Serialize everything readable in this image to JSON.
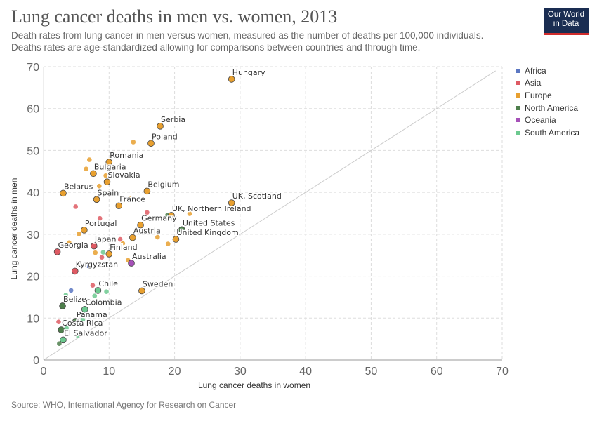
{
  "header": {
    "title": "Lung cancer deaths in men vs. women, 2013",
    "subtitle_lines": [
      "Death rates from lung cancer in men versus women, measured as the number of deaths per 100,000 individuals.",
      "Deaths rates are age-standardized allowing for comparisons between countries and through time."
    ]
  },
  "logo": {
    "line1": "Our World",
    "line2": "in Data"
  },
  "footer": {
    "source": "Source: WHO, International Agency for Research on Cancer"
  },
  "legend": [
    {
      "name": "Africa",
      "color": "#5b77c2"
    },
    {
      "name": "Asia",
      "color": "#de5a63"
    },
    {
      "name": "Europe",
      "color": "#e8a030"
    },
    {
      "name": "North America",
      "color": "#4e7f4c"
    },
    {
      "name": "Oceania",
      "color": "#a651b8"
    },
    {
      "name": "South America",
      "color": "#6cc98f"
    }
  ],
  "chart_data": {
    "type": "scatter",
    "title": "Lung cancer deaths in men vs. women, 2013",
    "xlabel": "Lung cancer deaths in women",
    "ylabel": "Lung cancer deaths in men",
    "xlim": [
      0,
      70
    ],
    "ylim": [
      0,
      70
    ],
    "xticks": [
      0,
      10,
      20,
      30,
      40,
      50,
      60,
      70
    ],
    "yticks": [
      0,
      10,
      20,
      30,
      40,
      50,
      60,
      70
    ],
    "grid": true,
    "reference_line": "y = x",
    "legend_position": "right",
    "points": [
      {
        "label": "Hungary",
        "region": "Europe",
        "x": 28.7,
        "y": 67.0
      },
      {
        "label": "Serbia",
        "region": "Europe",
        "x": 17.8,
        "y": 55.8
      },
      {
        "label": "Poland",
        "region": "Europe",
        "x": 16.4,
        "y": 51.7
      },
      {
        "label": "Romania",
        "region": "Europe",
        "x": 10.0,
        "y": 47.2
      },
      {
        "label": "Bulgaria",
        "region": "Europe",
        "x": 7.6,
        "y": 44.5
      },
      {
        "label": "Slovakia",
        "region": "Europe",
        "x": 9.7,
        "y": 42.5
      },
      {
        "label": "Belgium",
        "region": "Europe",
        "x": 15.8,
        "y": 40.3
      },
      {
        "label": "Belarus",
        "region": "Europe",
        "x": 3.0,
        "y": 39.8
      },
      {
        "label": "Spain",
        "region": "Europe",
        "x": 8.1,
        "y": 38.3
      },
      {
        "label": "France",
        "region": "Europe",
        "x": 11.5,
        "y": 36.8
      },
      {
        "label": "UK, Scotland",
        "region": "Europe",
        "x": 28.7,
        "y": 37.5
      },
      {
        "label": "UK, Northern Ireland",
        "region": "Europe",
        "x": 19.5,
        "y": 34.5
      },
      {
        "label": "Germany",
        "region": "Europe",
        "x": 14.8,
        "y": 32.2
      },
      {
        "label": "Portugal",
        "region": "Europe",
        "x": 6.2,
        "y": 31.0
      },
      {
        "label": "United States",
        "region": "North America",
        "x": 21.1,
        "y": 31.1
      },
      {
        "label": "Austria",
        "region": "Europe",
        "x": 13.6,
        "y": 29.2
      },
      {
        "label": "United Kingdom",
        "region": "Europe",
        "x": 20.2,
        "y": 28.8
      },
      {
        "label": "Japan",
        "region": "Asia",
        "x": 7.7,
        "y": 27.2
      },
      {
        "label": "Georgia",
        "region": "Asia",
        "x": 2.1,
        "y": 25.8
      },
      {
        "label": "Finland",
        "region": "Europe",
        "x": 10.0,
        "y": 25.3
      },
      {
        "label": "Australia",
        "region": "Oceania",
        "x": 13.4,
        "y": 23.1
      },
      {
        "label": "Kyrgyzstan",
        "region": "Asia",
        "x": 4.8,
        "y": 21.2
      },
      {
        "label": "Chile",
        "region": "South America",
        "x": 8.3,
        "y": 16.6
      },
      {
        "label": "Sweden",
        "region": "Europe",
        "x": 15.0,
        "y": 16.5
      },
      {
        "label": "Belize",
        "region": "North America",
        "x": 2.9,
        "y": 12.9
      },
      {
        "label": "Colombia",
        "region": "South America",
        "x": 6.3,
        "y": 12.1
      },
      {
        "label": "Panama",
        "region": "North America",
        "x": 4.9,
        "y": 9.2
      },
      {
        "label": "Costa Rica",
        "region": "North America",
        "x": 2.7,
        "y": 7.2
      },
      {
        "label": "El Salvador",
        "region": "South America",
        "x": 3.0,
        "y": 4.8
      },
      {
        "label": "",
        "region": "Europe",
        "x": 13.7,
        "y": 52.0
      },
      {
        "label": "",
        "region": "Europe",
        "x": 7.0,
        "y": 47.8
      },
      {
        "label": "",
        "region": "Europe",
        "x": 6.5,
        "y": 45.6
      },
      {
        "label": "",
        "region": "Europe",
        "x": 9.5,
        "y": 44.0
      },
      {
        "label": "",
        "region": "Europe",
        "x": 8.5,
        "y": 41.5
      },
      {
        "label": "",
        "region": "South America",
        "x": 9.5,
        "y": 39.8
      },
      {
        "label": "",
        "region": "Europe",
        "x": 13.2,
        "y": 38.5
      },
      {
        "label": "",
        "region": "Asia",
        "x": 4.9,
        "y": 36.6
      },
      {
        "label": "",
        "region": "Asia",
        "x": 15.8,
        "y": 35.2
      },
      {
        "label": "",
        "region": "North America",
        "x": 18.9,
        "y": 34.5
      },
      {
        "label": "",
        "region": "Europe",
        "x": 22.3,
        "y": 34.9
      },
      {
        "label": "",
        "region": "Asia",
        "x": 8.6,
        "y": 33.8
      },
      {
        "label": "",
        "region": "Europe",
        "x": 5.4,
        "y": 30.1
      },
      {
        "label": "",
        "region": "Europe",
        "x": 17.4,
        "y": 29.3
      },
      {
        "label": "",
        "region": "Asia",
        "x": 11.7,
        "y": 28.8
      },
      {
        "label": "",
        "region": "Europe",
        "x": 3.9,
        "y": 28.0
      },
      {
        "label": "",
        "region": "Europe",
        "x": 12.1,
        "y": 27.8
      },
      {
        "label": "",
        "region": "Europe",
        "x": 19.0,
        "y": 27.7
      },
      {
        "label": "",
        "region": "Europe",
        "x": 7.9,
        "y": 25.6
      },
      {
        "label": "",
        "region": "South America",
        "x": 9.1,
        "y": 25.7
      },
      {
        "label": "",
        "region": "Asia",
        "x": 8.9,
        "y": 24.5
      },
      {
        "label": "",
        "region": "Europe",
        "x": 17.8,
        "y": 24.6
      },
      {
        "label": "",
        "region": "Europe",
        "x": 12.9,
        "y": 23.8
      },
      {
        "label": "",
        "region": "Africa",
        "x": 6.7,
        "y": 22.5
      },
      {
        "label": "",
        "region": "Asia",
        "x": 7.5,
        "y": 17.8
      },
      {
        "label": "",
        "region": "Africa",
        "x": 4.2,
        "y": 16.6
      },
      {
        "label": "",
        "region": "South America",
        "x": 9.6,
        "y": 16.3
      },
      {
        "label": "",
        "region": "South America",
        "x": 3.4,
        "y": 15.5
      },
      {
        "label": "",
        "region": "South America",
        "x": 7.8,
        "y": 15.3
      },
      {
        "label": "",
        "region": "Asia",
        "x": 2.3,
        "y": 9.1
      },
      {
        "label": "",
        "region": "South America",
        "x": 6.0,
        "y": 9.6
      },
      {
        "label": "",
        "region": "South America",
        "x": 3.5,
        "y": 7.6
      },
      {
        "label": "",
        "region": "South America",
        "x": 5.2,
        "y": 5.9
      },
      {
        "label": "",
        "region": "North America",
        "x": 2.4,
        "y": 3.9
      }
    ]
  }
}
